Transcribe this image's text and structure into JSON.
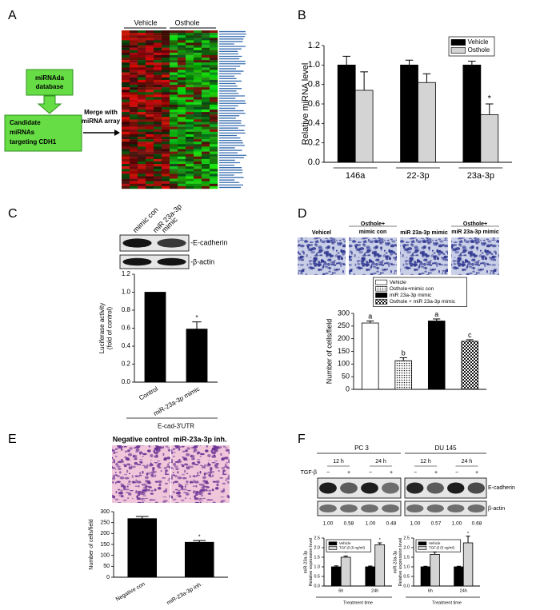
{
  "panels": {
    "labels": [
      "A",
      "B",
      "C",
      "D",
      "E",
      "F"
    ]
  },
  "panel_a": {
    "database_box": [
      "miRNAda",
      "database"
    ],
    "candidate_box": [
      "Candidate",
      "miRNAs",
      "targeting CDH1"
    ],
    "merge_label": [
      "Merge with",
      "miRNA array"
    ],
    "heatmap_headers": [
      "Vehicle",
      "Osthole"
    ]
  },
  "panel_c": {
    "lane_labels": [
      [
        "mimic con"
      ],
      [
        "miR 23a-3p",
        "mimic"
      ]
    ],
    "band_labels": [
      "-E-cadherin",
      "-β-actin"
    ]
  },
  "panel_d": {
    "image_titles": [
      [
        "Vehicel"
      ],
      [
        "Osthole+",
        "mimic con"
      ],
      [
        "miR 23a-3p mimic"
      ],
      [
        "Osthole+",
        "miR 23a-3p mimic"
      ]
    ]
  },
  "panel_e": {
    "image_titles": [
      "Negative control",
      "miR-23a-3p inh."
    ]
  },
  "panel_f": {
    "cell_lines": [
      "PC 3",
      "DU 145"
    ],
    "times": [
      "12 h",
      "24 h",
      "12 h",
      "24 h"
    ],
    "treatment_label": "TGF-β",
    "signs": [
      "−",
      "+",
      "−",
      "+",
      "−",
      "+",
      "−",
      "+"
    ],
    "band_labels": [
      "E-cadherin",
      "β-actin"
    ],
    "ratios": [
      "1.00",
      "0.58",
      "1.00",
      "0.48",
      "1.00",
      "0.57",
      "1.00",
      "0.68"
    ]
  },
  "chart_data": [
    {
      "type": "bar",
      "categories": [
        "146a",
        "22-3p",
        "23a-3p"
      ],
      "ylabel": "Relative miRNA level",
      "legend": "upper right",
      "ylim": [
        0,
        1.2
      ],
      "yticks": [
        {
          "value": 0,
          "label": "0.0"
        },
        0.2,
        0.4,
        0.6,
        0.8,
        {
          "value": 1,
          "label": "1.0"
        },
        1.2
      ],
      "series": [
        {
          "name": "Vehicle",
          "color": "#000000",
          "values": [
            1.0,
            1.0,
            1.0
          ],
          "errors": [
            0.09,
            0.05,
            0.04
          ]
        },
        {
          "name": "Osthole",
          "color": "#d4d4d4",
          "values": [
            0.74,
            0.82,
            0.49
          ],
          "errors": [
            0.19,
            0.09,
            0.11
          ],
          "annotations": [
            null,
            null,
            "*"
          ]
        }
      ]
    },
    {
      "type": "bar",
      "categories": [
        "Control",
        "miR-23a-3p mimic"
      ],
      "values": [
        1.0,
        0.59
      ],
      "errors": [
        null,
        0.08
      ],
      "annotations": [
        null,
        "*"
      ],
      "color": "#000000",
      "ylabel": [
        "Luciferase activity",
        "(fold of control)"
      ],
      "xlabel": "E-cad-3'UTR",
      "ylim": [
        0,
        1.2
      ],
      "yticks": [
        {
          "value": 0,
          "label": "0.0"
        },
        0.2,
        0.4,
        0.6,
        0.8,
        {
          "value": 1,
          "label": "1.0"
        },
        1.2
      ]
    },
    {
      "type": "bar",
      "categories": [
        "Vehicle",
        "Osthole+mimic con",
        "miR 23a-3p mimic",
        "Osthole + miR 23a-3p mimic"
      ],
      "values": [
        262,
        113,
        270,
        190
      ],
      "errors": [
        8,
        12,
        8,
        6
      ],
      "annotations": [
        "a",
        "b",
        "a",
        "c"
      ],
      "bar_styles": [
        "#ffffff",
        "dotted",
        "#000000",
        "checkered"
      ],
      "ylabel": "Number of cells/field",
      "legend": "upper center",
      "ylim": [
        0,
        300
      ],
      "yticks": [
        0,
        50,
        100,
        150,
        200,
        250,
        300
      ]
    },
    {
      "type": "bar",
      "categories": [
        "Negative con",
        "miR-23a-3p inh."
      ],
      "values": [
        268,
        160
      ],
      "errors": [
        10,
        8
      ],
      "annotations": [
        null,
        "*"
      ],
      "color": "#000000",
      "ylabel": "Number of cells/field",
      "ylim": [
        0,
        300
      ],
      "yticks": [
        0,
        50,
        100,
        150,
        200,
        250,
        300
      ]
    },
    {
      "type": "bar",
      "categories": [
        "6h",
        "24h"
      ],
      "ylabel": [
        "miR-23a-3p",
        "Relative expression level"
      ],
      "xlabel": "Treatment time",
      "legend": "upper left",
      "ylim": [
        0,
        2.5
      ],
      "yticks": [
        {
          "value": 0,
          "label": "0.0"
        },
        0.5,
        {
          "value": 1,
          "label": "1.0"
        },
        1.5,
        {
          "value": 2,
          "label": "2.0"
        },
        2.5
      ],
      "series": [
        {
          "name": "Vehicle",
          "color": "#000000",
          "values": [
            1.0,
            1.0
          ],
          "errors": [
            0.05,
            0.04
          ]
        },
        {
          "name": "TGF-β (5 ng/ml)",
          "color": "#d4d4d4",
          "values": [
            1.5,
            2.15
          ],
          "errors": [
            0.06,
            0.1
          ],
          "annotations": [
            "*",
            "*"
          ]
        }
      ]
    },
    {
      "type": "bar",
      "categories": [
        "6h",
        "24h"
      ],
      "ylabel": [
        "miR-23a-3p",
        "Relative expression level"
      ],
      "xlabel": "Treatment time",
      "legend": "upper left",
      "ylim": [
        0,
        2.5
      ],
      "yticks": [
        {
          "value": 0,
          "label": "0.0"
        },
        0.5,
        {
          "value": 1,
          "label": "1.0"
        },
        1.5,
        {
          "value": 2,
          "label": "2.0"
        },
        2.5
      ],
      "series": [
        {
          "name": "Vehicle",
          "color": "#000000",
          "values": [
            1.0,
            1.0
          ],
          "errors": [
            0.03,
            0.03
          ]
        },
        {
          "name": "TGF-β (5 ng/ml)",
          "color": "#d4d4d4",
          "values": [
            1.65,
            2.25
          ],
          "errors": [
            0.12,
            0.35
          ],
          "annotations": [
            "*",
            "*"
          ]
        }
      ]
    }
  ]
}
